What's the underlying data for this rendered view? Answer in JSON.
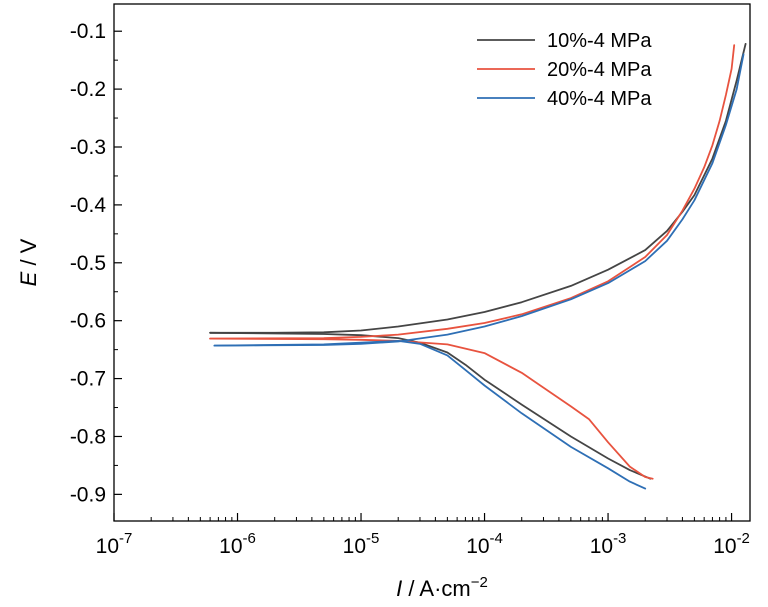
{
  "chart_data": {
    "type": "line",
    "xlabel": {
      "italic": "I",
      "rest": " / A·cm",
      "sup": "−2"
    },
    "ylabel": {
      "italic": "E",
      "rest": " / V"
    },
    "x_scale": "log",
    "xlim": [
      1e-07,
      0.0141
    ],
    "ylim": [
      -0.946,
      -0.053
    ],
    "x_ticks": [
      {
        "value": 1e-07,
        "base": "10",
        "exp": "-7"
      },
      {
        "value": 1e-06,
        "base": "10",
        "exp": "-6"
      },
      {
        "value": 1e-05,
        "base": "10",
        "exp": "-5"
      },
      {
        "value": 0.0001,
        "base": "10",
        "exp": "-4"
      },
      {
        "value": 0.001,
        "base": "10",
        "exp": "-3"
      },
      {
        "value": 0.01,
        "base": "10",
        "exp": "-2"
      }
    ],
    "y_ticks": [
      {
        "value": -0.1,
        "label": "-0.1"
      },
      {
        "value": -0.2,
        "label": "-0.2"
      },
      {
        "value": -0.3,
        "label": "-0.3"
      },
      {
        "value": -0.4,
        "label": "-0.4"
      },
      {
        "value": -0.5,
        "label": "-0.5"
      },
      {
        "value": -0.6,
        "label": "-0.6"
      },
      {
        "value": -0.7,
        "label": "-0.7"
      },
      {
        "value": -0.8,
        "label": "-0.8"
      },
      {
        "value": -0.9,
        "label": "-0.9"
      }
    ],
    "grid": false,
    "legend_position": "top-right",
    "series": [
      {
        "name": "10%-4 MPa",
        "color": "#454545",
        "anodic": [
          [
            6e-07,
            -0.621
          ],
          [
            2e-06,
            -0.621
          ],
          [
            5e-06,
            -0.62
          ],
          [
            1e-05,
            -0.617
          ],
          [
            2e-05,
            -0.61
          ],
          [
            5e-05,
            -0.598
          ],
          [
            0.0001,
            -0.585
          ],
          [
            0.0002,
            -0.568
          ],
          [
            0.0005,
            -0.54
          ],
          [
            0.001,
            -0.512
          ],
          [
            0.002,
            -0.478
          ],
          [
            0.003,
            -0.445
          ],
          [
            0.004,
            -0.412
          ],
          [
            0.005,
            -0.383
          ],
          [
            0.007,
            -0.32
          ],
          [
            0.009,
            -0.255
          ],
          [
            0.011,
            -0.185
          ],
          [
            0.013,
            -0.122
          ]
        ],
        "cathodic": [
          [
            6e-07,
            -0.621
          ],
          [
            5e-06,
            -0.623
          ],
          [
            1e-05,
            -0.625
          ],
          [
            2e-05,
            -0.63
          ],
          [
            3e-05,
            -0.638
          ],
          [
            5e-05,
            -0.655
          ],
          [
            7e-05,
            -0.676
          ],
          [
            0.0001,
            -0.702
          ],
          [
            0.0002,
            -0.745
          ],
          [
            0.0005,
            -0.8
          ],
          [
            0.001,
            -0.838
          ],
          [
            0.0015,
            -0.858
          ],
          [
            0.0022,
            -0.873
          ]
        ]
      },
      {
        "name": "20%-4 MPa",
        "color": "#e8533f",
        "anodic": [
          [
            6e-07,
            -0.631
          ],
          [
            5e-06,
            -0.63
          ],
          [
            1e-05,
            -0.628
          ],
          [
            2e-05,
            -0.624
          ],
          [
            5e-05,
            -0.614
          ],
          [
            0.0001,
            -0.604
          ],
          [
            0.0002,
            -0.589
          ],
          [
            0.0005,
            -0.561
          ],
          [
            0.001,
            -0.532
          ],
          [
            0.002,
            -0.49
          ],
          [
            0.003,
            -0.452
          ],
          [
            0.004,
            -0.41
          ],
          [
            0.005,
            -0.372
          ],
          [
            0.006,
            -0.335
          ],
          [
            0.007,
            -0.297
          ],
          [
            0.008,
            -0.255
          ],
          [
            0.009,
            -0.21
          ],
          [
            0.01,
            -0.165
          ],
          [
            0.0105,
            -0.124
          ]
        ],
        "cathodic": [
          [
            6e-07,
            -0.631
          ],
          [
            5e-06,
            -0.632
          ],
          [
            1e-05,
            -0.633
          ],
          [
            2e-05,
            -0.635
          ],
          [
            5e-05,
            -0.641
          ],
          [
            0.0001,
            -0.656
          ],
          [
            0.0002,
            -0.69
          ],
          [
            0.0005,
            -0.748
          ],
          [
            0.0007,
            -0.77
          ],
          [
            0.001,
            -0.81
          ],
          [
            0.0015,
            -0.852
          ],
          [
            0.002,
            -0.87
          ],
          [
            0.0023,
            -0.873
          ]
        ]
      },
      {
        "name": "40%-4 MPa",
        "color": "#2e6fb5",
        "anodic": [
          [
            6.5e-07,
            -0.643
          ],
          [
            5e-06,
            -0.642
          ],
          [
            1e-05,
            -0.64
          ],
          [
            2e-05,
            -0.636
          ],
          [
            5e-05,
            -0.624
          ],
          [
            0.0001,
            -0.61
          ],
          [
            0.0002,
            -0.592
          ],
          [
            0.0005,
            -0.563
          ],
          [
            0.001,
            -0.535
          ],
          [
            0.002,
            -0.497
          ],
          [
            0.003,
            -0.462
          ],
          [
            0.004,
            -0.425
          ],
          [
            0.005,
            -0.392
          ],
          [
            0.007,
            -0.328
          ],
          [
            0.009,
            -0.262
          ],
          [
            0.011,
            -0.2
          ],
          [
            0.0125,
            -0.14
          ]
        ],
        "cathodic": [
          [
            6.5e-07,
            -0.643
          ],
          [
            5e-06,
            -0.641
          ],
          [
            1e-05,
            -0.638
          ],
          [
            2e-05,
            -0.635
          ],
          [
            3e-05,
            -0.64
          ],
          [
            5e-05,
            -0.66
          ],
          [
            7e-05,
            -0.685
          ],
          [
            0.0001,
            -0.712
          ],
          [
            0.0002,
            -0.76
          ],
          [
            0.0005,
            -0.818
          ],
          [
            0.001,
            -0.855
          ],
          [
            0.0015,
            -0.878
          ],
          [
            0.002,
            -0.89
          ]
        ]
      }
    ]
  }
}
